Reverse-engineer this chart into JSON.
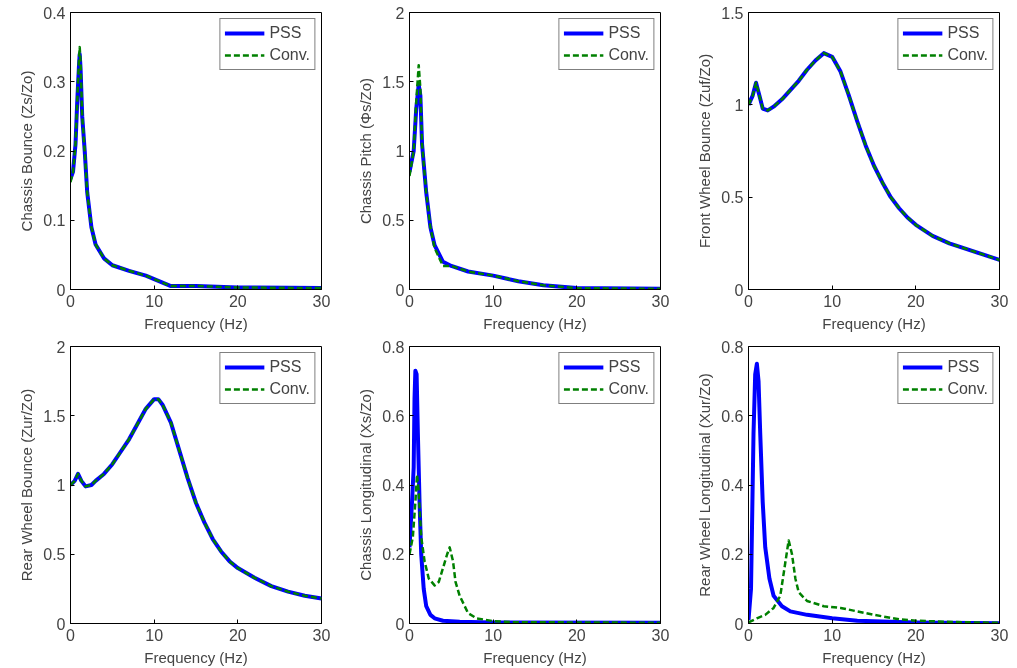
{
  "chart_data": [
    {
      "type": "line",
      "xlabel": "Frequency (Hz)",
      "ylabel": "Chassis Bounce (Zs/Zo)",
      "xlim": [
        0,
        30
      ],
      "ylim": [
        0,
        0.4
      ],
      "xticks": [
        0,
        10,
        20,
        30
      ],
      "yticks": [
        0,
        0.1,
        0.2,
        0.3,
        0.4
      ],
      "legend": "top right",
      "series": [
        {
          "name": "PSS",
          "color": "#0000ff",
          "line_style": "solid",
          "x": [
            0,
            0.3,
            0.6,
            0.8,
            1.0,
            1.1,
            1.2,
            1.4,
            1.7,
            2,
            2.5,
            3,
            4,
            5,
            7,
            9,
            11,
            12,
            15,
            20,
            30
          ],
          "values": [
            0.16,
            0.17,
            0.21,
            0.27,
            0.32,
            0.34,
            0.32,
            0.25,
            0.2,
            0.14,
            0.09,
            0.065,
            0.045,
            0.035,
            0.027,
            0.02,
            0.01,
            0.005,
            0.005,
            0.003,
            0.002
          ]
        },
        {
          "name": "Conv.",
          "color": "#008000",
          "line_style": "dashed",
          "x": [
            0,
            0.3,
            0.6,
            0.8,
            1.0,
            1.1,
            1.2,
            1.4,
            1.7,
            2,
            2.5,
            3,
            4,
            5,
            7,
            9,
            11,
            12,
            15,
            20,
            30
          ],
          "values": [
            0.155,
            0.17,
            0.21,
            0.27,
            0.33,
            0.35,
            0.33,
            0.25,
            0.2,
            0.14,
            0.09,
            0.065,
            0.045,
            0.035,
            0.027,
            0.02,
            0.01,
            0.005,
            0.005,
            0.003,
            0.002
          ]
        }
      ]
    },
    {
      "type": "line",
      "xlabel": "Frequency (Hz)",
      "ylabel": "Chassis Pitch (Φs/Zo)",
      "xlim": [
        0,
        30
      ],
      "ylim": [
        0,
        2
      ],
      "xticks": [
        0,
        10,
        20,
        30
      ],
      "yticks": [
        0,
        0.5,
        1,
        1.5,
        2
      ],
      "legend": "top right",
      "series": [
        {
          "name": "PSS",
          "color": "#0000ff",
          "line_style": "solid",
          "x": [
            0,
            0.5,
            0.8,
            1.1,
            1.3,
            1.5,
            2,
            2.5,
            3,
            4,
            5,
            7,
            10,
            13,
            16,
            20,
            30
          ],
          "values": [
            0.85,
            1.0,
            1.3,
            1.48,
            1.4,
            1.05,
            0.7,
            0.45,
            0.32,
            0.2,
            0.17,
            0.13,
            0.1,
            0.06,
            0.03,
            0.01,
            0.005
          ]
        },
        {
          "name": "Conv.",
          "color": "#008000",
          "line_style": "dashed",
          "x": [
            0,
            0.5,
            0.8,
            1.1,
            1.3,
            1.5,
            2,
            2.5,
            3,
            4,
            5,
            7,
            10,
            13,
            16,
            20,
            30
          ],
          "values": [
            0.82,
            1.0,
            1.35,
            1.62,
            1.45,
            1.05,
            0.7,
            0.45,
            0.3,
            0.17,
            0.17,
            0.13,
            0.1,
            0.06,
            0.03,
            0.01,
            0.005
          ]
        }
      ]
    },
    {
      "type": "line",
      "xlabel": "Frequency (Hz)",
      "ylabel": "Front Wheel Bounce (Zuf/Zo)",
      "xlim": [
        0,
        30
      ],
      "ylim": [
        0,
        1.5
      ],
      "xticks": [
        0,
        10,
        20,
        30
      ],
      "yticks": [
        0,
        0.5,
        1,
        1.5
      ],
      "legend": "top right",
      "series": [
        {
          "name": "PSS",
          "color": "#0000ff",
          "line_style": "solid",
          "x": [
            0,
            0.5,
            0.9,
            1.3,
            1.7,
            2.3,
            3,
            4,
            5,
            6,
            7,
            8,
            9,
            10,
            11,
            12,
            13,
            14,
            15,
            16,
            17,
            18,
            19,
            20,
            22,
            24,
            26,
            28,
            30
          ],
          "values": [
            1.0,
            1.05,
            1.12,
            1.05,
            0.98,
            0.97,
            0.99,
            1.03,
            1.08,
            1.13,
            1.19,
            1.24,
            1.28,
            1.26,
            1.18,
            1.05,
            0.91,
            0.78,
            0.67,
            0.58,
            0.5,
            0.44,
            0.39,
            0.35,
            0.29,
            0.25,
            0.22,
            0.19,
            0.16
          ]
        },
        {
          "name": "Conv.",
          "color": "#008000",
          "line_style": "dashed",
          "x": [
            0,
            0.5,
            0.9,
            1.3,
            1.7,
            2.3,
            3,
            4,
            5,
            6,
            7,
            8,
            9,
            10,
            11,
            12,
            13,
            14,
            15,
            16,
            17,
            18,
            19,
            20,
            22,
            24,
            26,
            28,
            30
          ],
          "values": [
            1.0,
            1.05,
            1.12,
            1.05,
            0.98,
            0.97,
            0.99,
            1.03,
            1.08,
            1.13,
            1.19,
            1.24,
            1.28,
            1.26,
            1.18,
            1.05,
            0.91,
            0.78,
            0.67,
            0.58,
            0.5,
            0.44,
            0.39,
            0.35,
            0.29,
            0.25,
            0.22,
            0.19,
            0.16
          ]
        }
      ]
    },
    {
      "type": "line",
      "xlabel": "Frequency (Hz)",
      "ylabel": "Rear Wheel Bounce (Zur/Zo)",
      "xlim": [
        0,
        30
      ],
      "ylim": [
        0,
        2
      ],
      "xticks": [
        0,
        10,
        20,
        30
      ],
      "yticks": [
        0,
        0.5,
        1,
        1.5,
        2
      ],
      "legend": "top right",
      "series": [
        {
          "name": "PSS",
          "color": "#0000ff",
          "line_style": "solid",
          "x": [
            0,
            0.5,
            0.9,
            1.3,
            1.8,
            2.5,
            3,
            4,
            5,
            6,
            7,
            8,
            9,
            10,
            10.5,
            11,
            12,
            13,
            14,
            15,
            16,
            17,
            18,
            19,
            20,
            22,
            24,
            26,
            28,
            30
          ],
          "values": [
            1.0,
            1.03,
            1.08,
            1.03,
            0.99,
            1.0,
            1.03,
            1.08,
            1.15,
            1.24,
            1.33,
            1.44,
            1.55,
            1.62,
            1.62,
            1.58,
            1.45,
            1.25,
            1.05,
            0.87,
            0.73,
            0.61,
            0.52,
            0.45,
            0.4,
            0.33,
            0.27,
            0.23,
            0.2,
            0.18
          ]
        },
        {
          "name": "Conv.",
          "color": "#008000",
          "line_style": "dashed",
          "x": [
            0,
            0.5,
            0.9,
            1.3,
            1.8,
            2.5,
            3,
            4,
            5,
            6,
            7,
            8,
            9,
            10,
            10.5,
            11,
            12,
            13,
            14,
            15,
            16,
            17,
            18,
            19,
            20,
            22,
            24,
            26,
            28,
            30
          ],
          "values": [
            1.0,
            1.03,
            1.08,
            1.03,
            0.99,
            1.0,
            1.03,
            1.08,
            1.15,
            1.24,
            1.33,
            1.44,
            1.55,
            1.62,
            1.62,
            1.58,
            1.45,
            1.25,
            1.05,
            0.87,
            0.73,
            0.61,
            0.52,
            0.45,
            0.4,
            0.33,
            0.27,
            0.23,
            0.2,
            0.18
          ]
        }
      ]
    },
    {
      "type": "line",
      "xlabel": "Frequency (Hz)",
      "ylabel": "Chassis Longitudinal (Xs/Zo)",
      "xlim": [
        0,
        30
      ],
      "ylim": [
        0,
        0.8
      ],
      "xticks": [
        0,
        10,
        20,
        30
      ],
      "yticks": [
        0,
        0.2,
        0.4,
        0.6,
        0.8
      ],
      "legend": "top right",
      "series": [
        {
          "name": "PSS",
          "color": "#0000ff",
          "line_style": "solid",
          "x": [
            0,
            0.3,
            0.5,
            0.6,
            0.7,
            0.85,
            1.0,
            1.2,
            1.4,
            1.7,
            2,
            2.5,
            3,
            4,
            6,
            10,
            30
          ],
          "values": [
            0.22,
            0.35,
            0.45,
            0.65,
            0.73,
            0.72,
            0.55,
            0.35,
            0.2,
            0.1,
            0.05,
            0.025,
            0.015,
            0.008,
            0.005,
            0.003,
            0.002
          ]
        },
        {
          "name": "Conv.",
          "color": "#008000",
          "line_style": "dashed",
          "x": [
            0,
            0.4,
            0.7,
            0.9,
            1.1,
            1.4,
            1.8,
            2.3,
            3,
            3.5,
            4,
            4.5,
            4.8,
            5.2,
            5.5,
            6,
            7,
            8,
            10,
            12,
            30
          ],
          "values": [
            0.2,
            0.25,
            0.35,
            0.43,
            0.38,
            0.25,
            0.18,
            0.13,
            0.11,
            0.12,
            0.16,
            0.2,
            0.22,
            0.18,
            0.12,
            0.08,
            0.03,
            0.015,
            0.007,
            0.004,
            0.002
          ]
        }
      ]
    },
    {
      "type": "line",
      "xlabel": "Frequency (Hz)",
      "ylabel": "Rear Wheel Longitudinal (Xur/Zo)",
      "xlim": [
        0,
        30
      ],
      "ylim": [
        0,
        0.8
      ],
      "xticks": [
        0,
        10,
        20,
        30
      ],
      "yticks": [
        0,
        0.2,
        0.4,
        0.6,
        0.8
      ],
      "legend": "top right",
      "series": [
        {
          "name": "PSS",
          "color": "#0000ff",
          "line_style": "solid",
          "x": [
            0,
            0.3,
            0.6,
            0.8,
            1.0,
            1.2,
            1.4,
            1.7,
            2,
            2.5,
            3,
            4,
            5,
            7,
            10,
            13,
            20,
            30
          ],
          "values": [
            0.01,
            0.1,
            0.55,
            0.72,
            0.75,
            0.7,
            0.55,
            0.35,
            0.22,
            0.13,
            0.08,
            0.05,
            0.035,
            0.025,
            0.015,
            0.008,
            0.003,
            0.001
          ]
        },
        {
          "name": "Conv.",
          "color": "#008000",
          "line_style": "dashed",
          "x": [
            0,
            1,
            2,
            3,
            3.8,
            4.3,
            4.8,
            5.2,
            5.6,
            6,
            7,
            9,
            11,
            13,
            15,
            18,
            20,
            25,
            30
          ],
          "values": [
            0.003,
            0.015,
            0.025,
            0.045,
            0.08,
            0.16,
            0.24,
            0.2,
            0.13,
            0.09,
            0.065,
            0.05,
            0.045,
            0.035,
            0.025,
            0.012,
            0.008,
            0.004,
            0.002
          ]
        }
      ]
    }
  ]
}
